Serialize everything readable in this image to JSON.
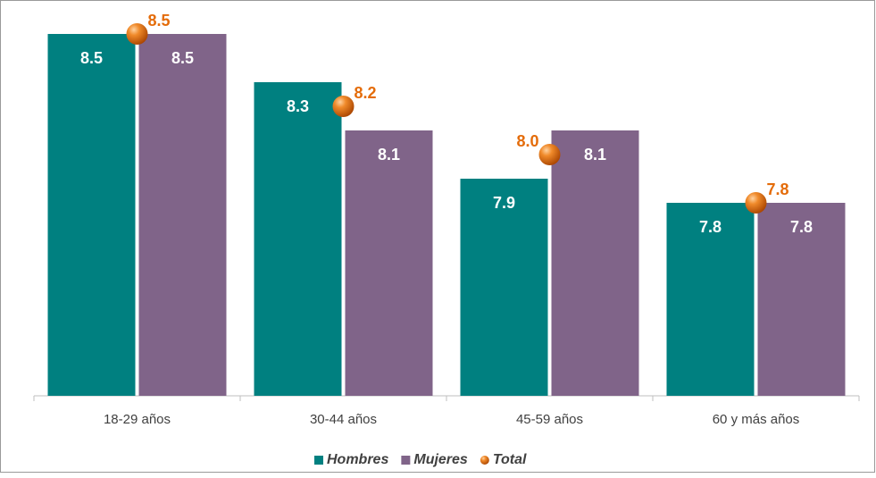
{
  "chart_data": {
    "type": "bar",
    "categories": [
      "18-29 años",
      "30-44 años",
      "45-59 años",
      "60 y más años"
    ],
    "series": [
      {
        "name": "Hombres",
        "color": "#008080",
        "values": [
          8.5,
          8.3,
          7.9,
          7.8
        ]
      },
      {
        "name": "Mujeres",
        "color": "#806489",
        "values": [
          8.5,
          8.1,
          8.1,
          7.8
        ]
      },
      {
        "name": "Total",
        "color": "#e46c0a",
        "type": "marker",
        "values": [
          8.5,
          8.2,
          8.0,
          7.8
        ],
        "value_labels": [
          "8.5",
          "8.2",
          "8.0",
          "7.8"
        ]
      }
    ],
    "ylim": [
      7,
      8.6
    ],
    "legend": "bottom"
  }
}
